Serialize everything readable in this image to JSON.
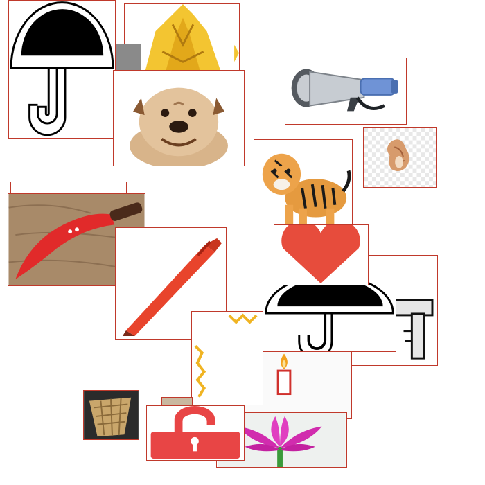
{
  "board": {
    "background": "#ffffff",
    "border_color": "#c0392b"
  },
  "symbols": [
    {
      "name": "umbrella-icon"
    },
    {
      "name": "sunflower-icon"
    },
    {
      "name": "bulldog-icon"
    },
    {
      "name": "megaphone-icon"
    },
    {
      "name": "conch-shell-icon"
    },
    {
      "name": "tiger-icon"
    },
    {
      "name": "khukuri-knife-icon"
    },
    {
      "name": "pen-icon"
    },
    {
      "name": "heart-icon"
    },
    {
      "name": "umbrella-icon"
    },
    {
      "name": "key-icon"
    },
    {
      "name": "candle-icon"
    },
    {
      "name": "basket-icon"
    },
    {
      "name": "open-padlock-icon"
    },
    {
      "name": "lotus-icon"
    }
  ]
}
